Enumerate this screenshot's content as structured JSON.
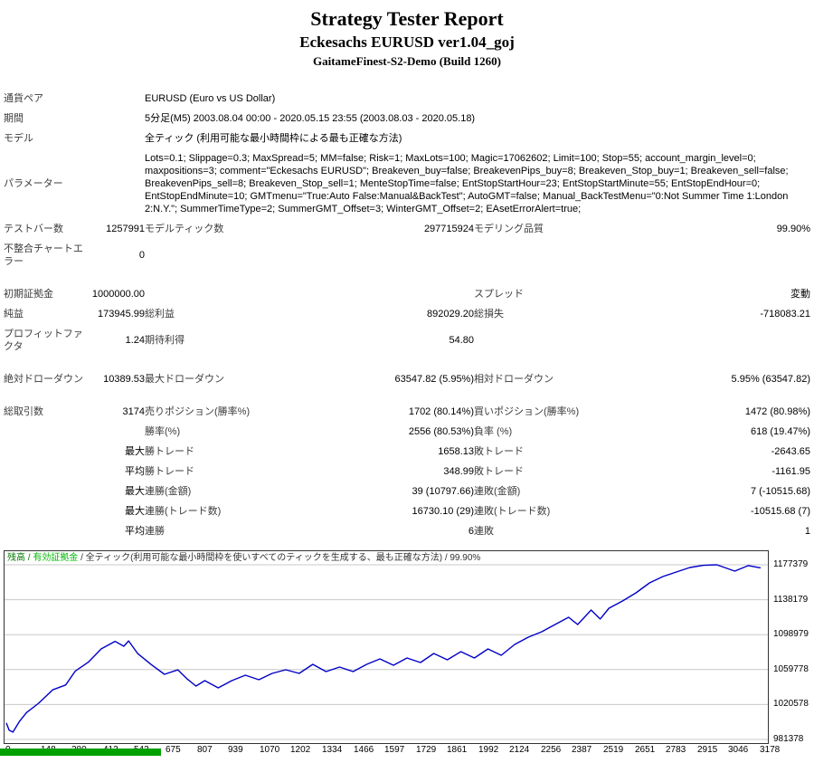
{
  "header": {
    "title": "Strategy Tester Report",
    "subtitle": "Eckesachs EURUSD ver1.04_goj",
    "build": "GaitameFinest-S2-Demo (Build 1260)"
  },
  "report": {
    "rows": [
      {
        "type": "wide",
        "label": "通貨ペア",
        "value": "EURUSD (Euro vs US Dollar)"
      },
      {
        "type": "wide",
        "label": "期間",
        "value": "5分足(M5) 2003.08.04 00:00 - 2020.05.15 23:55 (2003.08.03 - 2020.05.18)"
      },
      {
        "type": "wide",
        "label": "モデル",
        "value": "全ティック (利用可能な最小時間枠による最も正確な方法)"
      },
      {
        "type": "wide",
        "cls": "params",
        "label": "パラメーター",
        "value": "Lots=0.1; Slippage=0.3; MaxSpread=5; MM=false; Risk=1; MaxLots=100; Magic=17062602; Limit=100; Stop=55; account_margin_level=0; maxpositions=3; comment=\"Eckesachs EURUSD\"; Breakeven_buy=false; BreakevenPips_buy=8; Breakeven_Stop_buy=1; Breakeven_sell=false; BreakevenPips_sell=8; Breakeven_Stop_sell=1; MenteStopTime=false; EntStopStartHour=23; EntStopStartMinute=55; EntStopEndHour=0; EntStopEndMinute=10; GMTmenu=\"True:Auto False:Manual&BackTest\"; AutoGMT=false; Manual_BackTestMenu=\"0:Not Summer Time 1:London 2:N.Y.\"; SummerTimeType=2; SummerGMT_Offset=3; WinterGMT_Offset=2; EAsetErrorAlert=true;"
      },
      {
        "type": "six",
        "cells": [
          "テストバー数",
          "1257991",
          "モデルティック数",
          "297715924",
          "モデリング品質",
          "99.90%"
        ]
      },
      {
        "type": "six",
        "cells": [
          "不整合チャートエラー",
          "0",
          "",
          "",
          "",
          ""
        ]
      },
      {
        "type": "gap"
      },
      {
        "type": "six",
        "cells": [
          "初期証拠金",
          "1000000.00",
          "",
          "",
          "スプレッド",
          "変動"
        ]
      },
      {
        "type": "six",
        "cells": [
          "純益",
          "173945.99",
          "総利益",
          "892029.20",
          "総損失",
          "-718083.21"
        ]
      },
      {
        "type": "six",
        "cells": [
          "プロフィットファクタ",
          "1.24",
          "期待利得",
          "54.80",
          "",
          ""
        ]
      },
      {
        "type": "gap"
      },
      {
        "type": "six",
        "cells": [
          "絶対ドローダウン",
          "10389.53",
          "最大ドローダウン",
          "63547.82 (5.95%)",
          "相対ドローダウン",
          "5.95% (63547.82)"
        ]
      },
      {
        "type": "gap"
      },
      {
        "type": "six",
        "cells": [
          "総取引数",
          "3174",
          "売りポジション(勝率%)",
          "1702 (80.14%)",
          "買いポジション(勝率%)",
          "1472 (80.98%)"
        ]
      },
      {
        "type": "six",
        "cells": [
          "",
          "",
          "勝率(%)",
          "2556 (80.53%)",
          "負率 (%)",
          "618 (19.47%)"
        ]
      },
      {
        "type": "six",
        "cells": [
          "",
          "最大",
          "勝トレード",
          "1658.13",
          "敗トレード",
          "-2643.65"
        ]
      },
      {
        "type": "six",
        "cells": [
          "",
          "平均",
          "勝トレード",
          "348.99",
          "敗トレード",
          "-1161.95"
        ]
      },
      {
        "type": "six",
        "cells": [
          "",
          "最大",
          "連勝(金額)",
          "39 (10797.66)",
          "連敗(金額)",
          "7 (-10515.68)"
        ]
      },
      {
        "type": "six",
        "cells": [
          "",
          "最大",
          "連勝(トレード数)",
          "16730.10 (29)",
          "連敗(トレード数)",
          "-10515.68 (7)"
        ]
      },
      {
        "type": "six",
        "cells": [
          "",
          "平均",
          "連勝",
          "6",
          "連敗",
          "1"
        ]
      }
    ]
  },
  "chart_data": {
    "type": "line",
    "title": "残高 / 有効証拠金 / 全ティック(利用可能な最小時間枠を使いすべてのティックを生成する、最も正確な方法) / 99.90%",
    "legend_parts": [
      {
        "text": "残高",
        "color": "#007700"
      },
      {
        "text": " / ",
        "color": "#007700"
      },
      {
        "text": "有効証拠金",
        "color": "#00bb00"
      },
      {
        "text": " / 全ティック(利用可能な最小時間枠を使いすべてのティックを生成する、最も正確な方法) / 99.90%",
        "color": "#333333"
      }
    ],
    "xlabel": "",
    "ylabel": "",
    "x_max": 3178,
    "x_ticks": [
      0,
      148,
      280,
      412,
      543,
      675,
      807,
      939,
      1070,
      1202,
      1334,
      1466,
      1597,
      1729,
      1861,
      1992,
      2124,
      2256,
      2387,
      2519,
      2651,
      2783,
      2915,
      3046,
      3178
    ],
    "y_ticks": [
      1177379,
      1138179,
      1098979,
      1059778,
      1020578,
      981378
    ],
    "grid": "horizontal",
    "colors": {
      "balance": "#0000c8",
      "grid": "#c8c8c8",
      "border": "#333333",
      "lots_bar": "#00a000"
    },
    "series": [
      {
        "name": "残高",
        "color": "#0000c8",
        "points": [
          [
            0,
            1000000
          ],
          [
            12,
            991800
          ],
          [
            28,
            989650
          ],
          [
            55,
            1001500
          ],
          [
            85,
            1011500
          ],
          [
            136,
            1022000
          ],
          [
            195,
            1037000
          ],
          [
            250,
            1042500
          ],
          [
            290,
            1058000
          ],
          [
            345,
            1068000
          ],
          [
            400,
            1083000
          ],
          [
            458,
            1091500
          ],
          [
            495,
            1086000
          ],
          [
            515,
            1092000
          ],
          [
            553,
            1078000
          ],
          [
            610,
            1065500
          ],
          [
            666,
            1054500
          ],
          [
            723,
            1059500
          ],
          [
            761,
            1049500
          ],
          [
            799,
            1041300
          ],
          [
            836,
            1047400
          ],
          [
            893,
            1039300
          ],
          [
            950,
            1047400
          ],
          [
            1007,
            1053500
          ],
          [
            1064,
            1048400
          ],
          [
            1120,
            1055500
          ],
          [
            1177,
            1059600
          ],
          [
            1234,
            1055500
          ],
          [
            1291,
            1065700
          ],
          [
            1347,
            1057500
          ],
          [
            1404,
            1062600
          ],
          [
            1461,
            1057500
          ],
          [
            1518,
            1065700
          ],
          [
            1574,
            1071800
          ],
          [
            1631,
            1064700
          ],
          [
            1688,
            1072800
          ],
          [
            1745,
            1067700
          ],
          [
            1801,
            1077900
          ],
          [
            1858,
            1070750
          ],
          [
            1915,
            1079900
          ],
          [
            1972,
            1072800
          ],
          [
            2029,
            1082900
          ],
          [
            2085,
            1075800
          ],
          [
            2142,
            1088000
          ],
          [
            2199,
            1096100
          ],
          [
            2256,
            1102200
          ],
          [
            2312,
            1110400
          ],
          [
            2369,
            1118500
          ],
          [
            2407,
            1110400
          ],
          [
            2464,
            1126600
          ],
          [
            2502,
            1116500
          ],
          [
            2539,
            1128600
          ],
          [
            2596,
            1136800
          ],
          [
            2653,
            1145900
          ],
          [
            2710,
            1157100
          ],
          [
            2766,
            1164200
          ],
          [
            2823,
            1169300
          ],
          [
            2880,
            1174300
          ],
          [
            2937,
            1176800
          ],
          [
            2993,
            1177379
          ],
          [
            3069,
            1170300
          ],
          [
            3126,
            1176500
          ],
          [
            3178,
            1173946
          ]
        ]
      }
    ]
  }
}
